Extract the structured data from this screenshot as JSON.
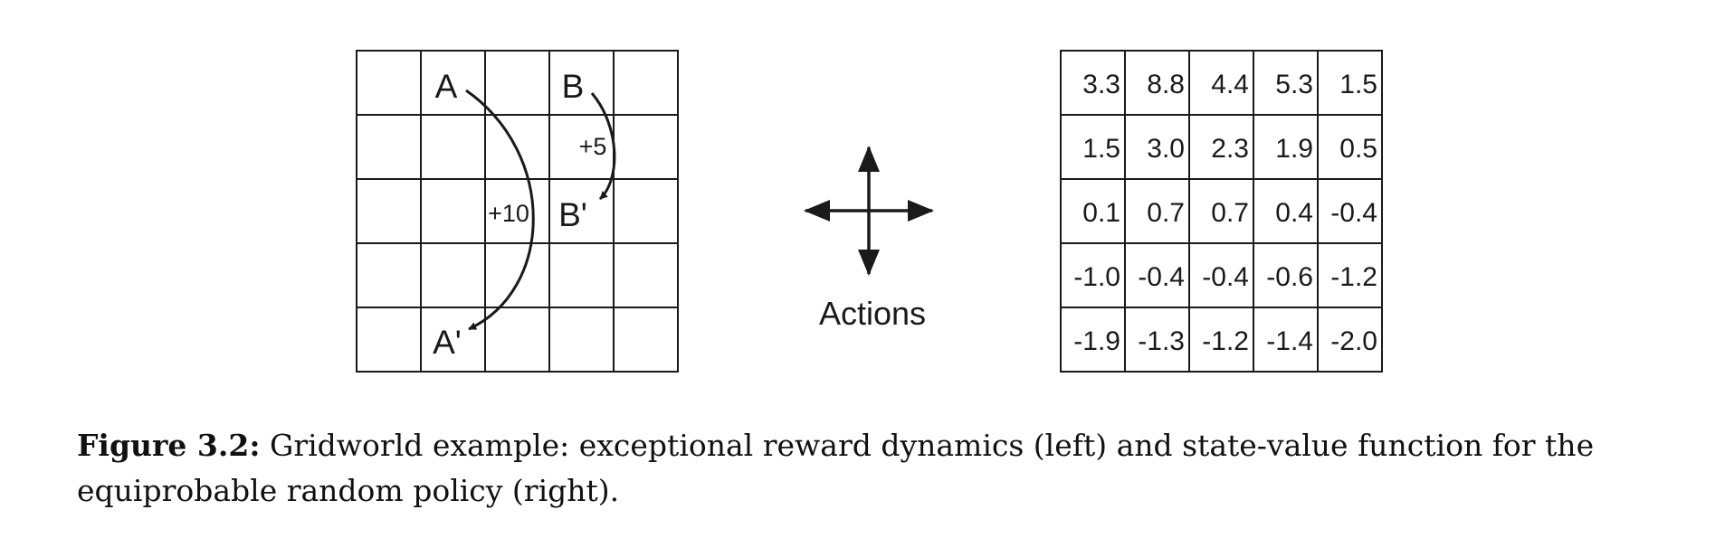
{
  "gridworld": {
    "rows": 5,
    "cols": 5,
    "labels": [
      {
        "text": "A",
        "row": 0,
        "col": 1
      },
      {
        "text": "B",
        "row": 0,
        "col": 3
      },
      {
        "text": "B'",
        "row": 2,
        "col": 3
      },
      {
        "text": "A'",
        "row": 4,
        "col": 1
      }
    ],
    "rewards": {
      "a": "+10",
      "b": "+5"
    }
  },
  "actions": {
    "label": "Actions"
  },
  "value_grid": {
    "rows": 5,
    "cols": 5,
    "values": [
      [
        "3.3",
        "8.8",
        "4.4",
        "5.3",
        "1.5"
      ],
      [
        "1.5",
        "3.0",
        "2.3",
        "1.9",
        "0.5"
      ],
      [
        "0.1",
        "0.7",
        "0.7",
        "0.4",
        "-0.4"
      ],
      [
        "-1.0",
        "-0.4",
        "-0.4",
        "-0.6",
        "-1.2"
      ],
      [
        "-1.9",
        "-1.3",
        "-1.2",
        "-1.4",
        "-2.0"
      ]
    ]
  },
  "caption": {
    "label": "Figure 3.2:",
    "text": " Gridworld example: exceptional reward dynamics (left) and state-value function for the equiprobable random policy (right)."
  }
}
